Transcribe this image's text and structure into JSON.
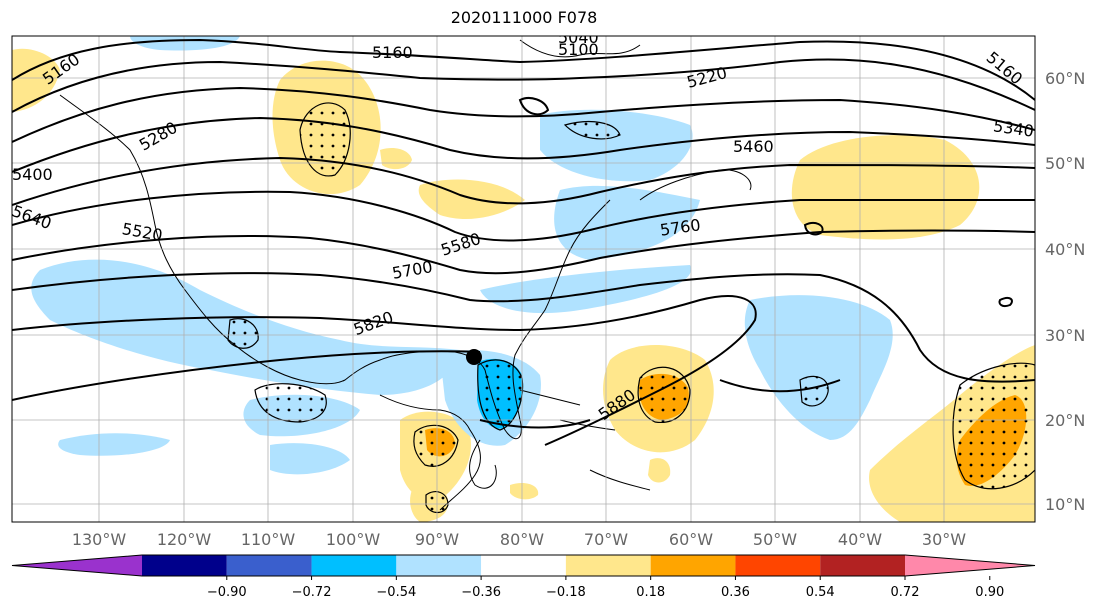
{
  "title": "2020111000 F078",
  "lon_labels": [
    "130°W",
    "120°W",
    "110°W",
    "100°W",
    "90°W",
    "80°W",
    "70°W",
    "60°W",
    "50°W",
    "40°W",
    "30°W"
  ],
  "lat_labels": [
    "60°N",
    "50°N",
    "40°N",
    "30°N",
    "20°N",
    "10°N"
  ],
  "colorbar": {
    "ticks": [
      "−0.90",
      "−0.72",
      "−0.54",
      "−0.36",
      "−0.18",
      "0.18",
      "0.36",
      "0.54",
      "0.72",
      "0.90"
    ],
    "colors": [
      "#9a32cd",
      "#00008b",
      "#3a5fcd",
      "#00bfff",
      "#b0e2ff",
      "#ffffff",
      "#ffe78c",
      "#ffa500",
      "#ff4500",
      "#b22222",
      "#ff88aa"
    ]
  },
  "contour_labels": [
    "5160",
    "5100",
    "5040",
    "5160",
    "5220",
    "5160",
    "5280",
    "5340",
    "5460",
    "5400",
    "5640",
    "5520",
    "5580",
    "5760",
    "5700",
    "5820",
    "5880"
  ],
  "marker": {
    "name": "storm-center",
    "color": "#000000"
  }
}
